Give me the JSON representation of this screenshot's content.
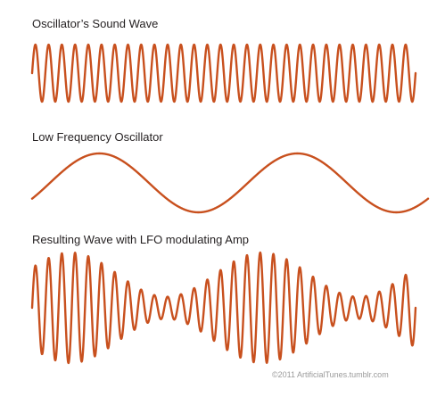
{
  "panels": {
    "oscillator": {
      "title": "Oscillator’s Sound Wave"
    },
    "lfo": {
      "title": "Low Frequency Oscillator"
    },
    "result": {
      "title": "Resulting Wave with LFO modulating Amp"
    }
  },
  "credit": "©2011 ArtificialTunes.tumblr.com",
  "colors": {
    "wave": "#c8501e",
    "text": "#231f20",
    "credit": "#9a9a9a"
  },
  "waves": {
    "oscillator_cycles": 29,
    "lfo_cycles": 2,
    "result_cycles": 29,
    "result_min_amplitude_ratio": 0.2
  }
}
